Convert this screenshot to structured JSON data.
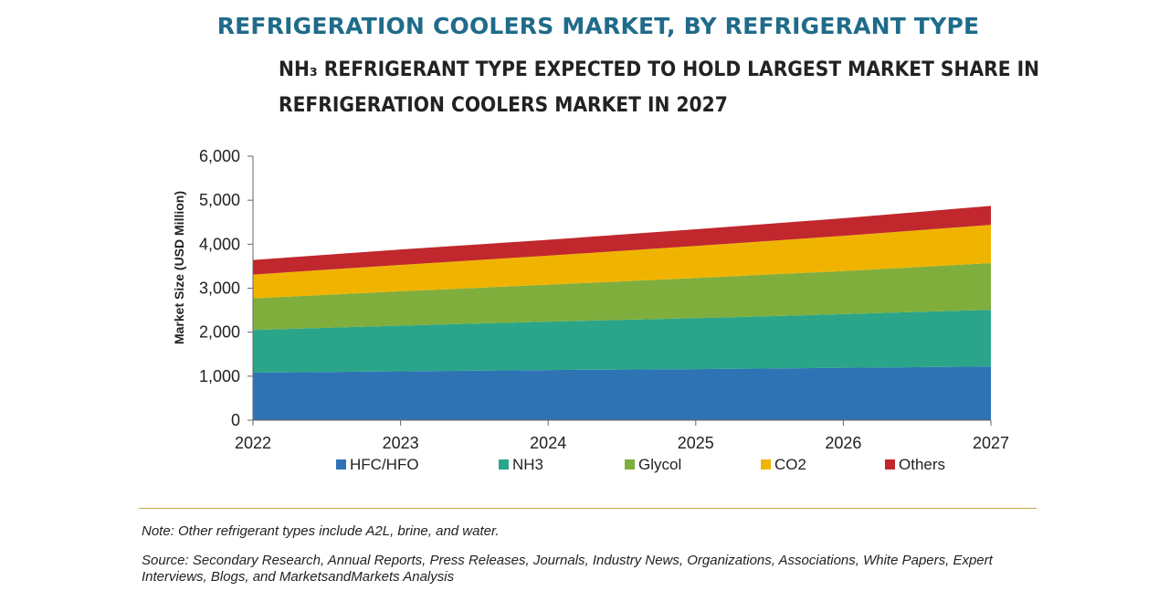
{
  "header": {
    "title": "REFRIGERATION COOLERS MARKET, BY REFRIGERANT TYPE",
    "subtitle_line1": "NH₃ REFRIGERANT TYPE EXPECTED TO HOLD LARGEST MARKET SHARE IN",
    "subtitle_line2": "REFRIGERATION COOLERS MARKET IN 2027"
  },
  "chart_data": {
    "type": "area",
    "stacked": true,
    "categories": [
      "2022",
      "2023",
      "2024",
      "2025",
      "2026",
      "2027"
    ],
    "ylabel": "Market Size (USD Million)",
    "xlabel": "",
    "ylim": [
      0,
      6000
    ],
    "yticks": [
      0,
      1000,
      2000,
      3000,
      4000,
      5000,
      6000
    ],
    "ytick_labels": [
      "0",
      "1,000",
      "2,000",
      "3,000",
      "4,000",
      "5,000",
      "6,000"
    ],
    "grid": false,
    "legend": "bottom",
    "series": [
      {
        "name": "HFC/HFO",
        "color": "#2e74b5",
        "values": [
          1080,
          1110,
          1140,
          1160,
          1190,
          1220
        ]
      },
      {
        "name": "NH3",
        "color": "#2aa58a",
        "values": [
          970,
          1040,
          1100,
          1160,
          1220,
          1290
        ]
      },
      {
        "name": "Glycol",
        "color": "#7fae3c",
        "values": [
          720,
          780,
          840,
          910,
          980,
          1060
        ]
      },
      {
        "name": "CO2",
        "color": "#f0b400",
        "values": [
          540,
          600,
          660,
          730,
          800,
          870
        ]
      },
      {
        "name": "Others",
        "color": "#c0282d",
        "values": [
          330,
          350,
          360,
          380,
          400,
          430
        ]
      }
    ]
  },
  "footer": {
    "note": "Note: Other refrigerant types include A2L, brine, and water.",
    "source": "Source: Secondary Research, Annual Reports, Press Releases, Journals, Industry News, Organizations, Associations, White Papers, Expert Interviews, Blogs, and MarketsandMarkets Analysis"
  }
}
